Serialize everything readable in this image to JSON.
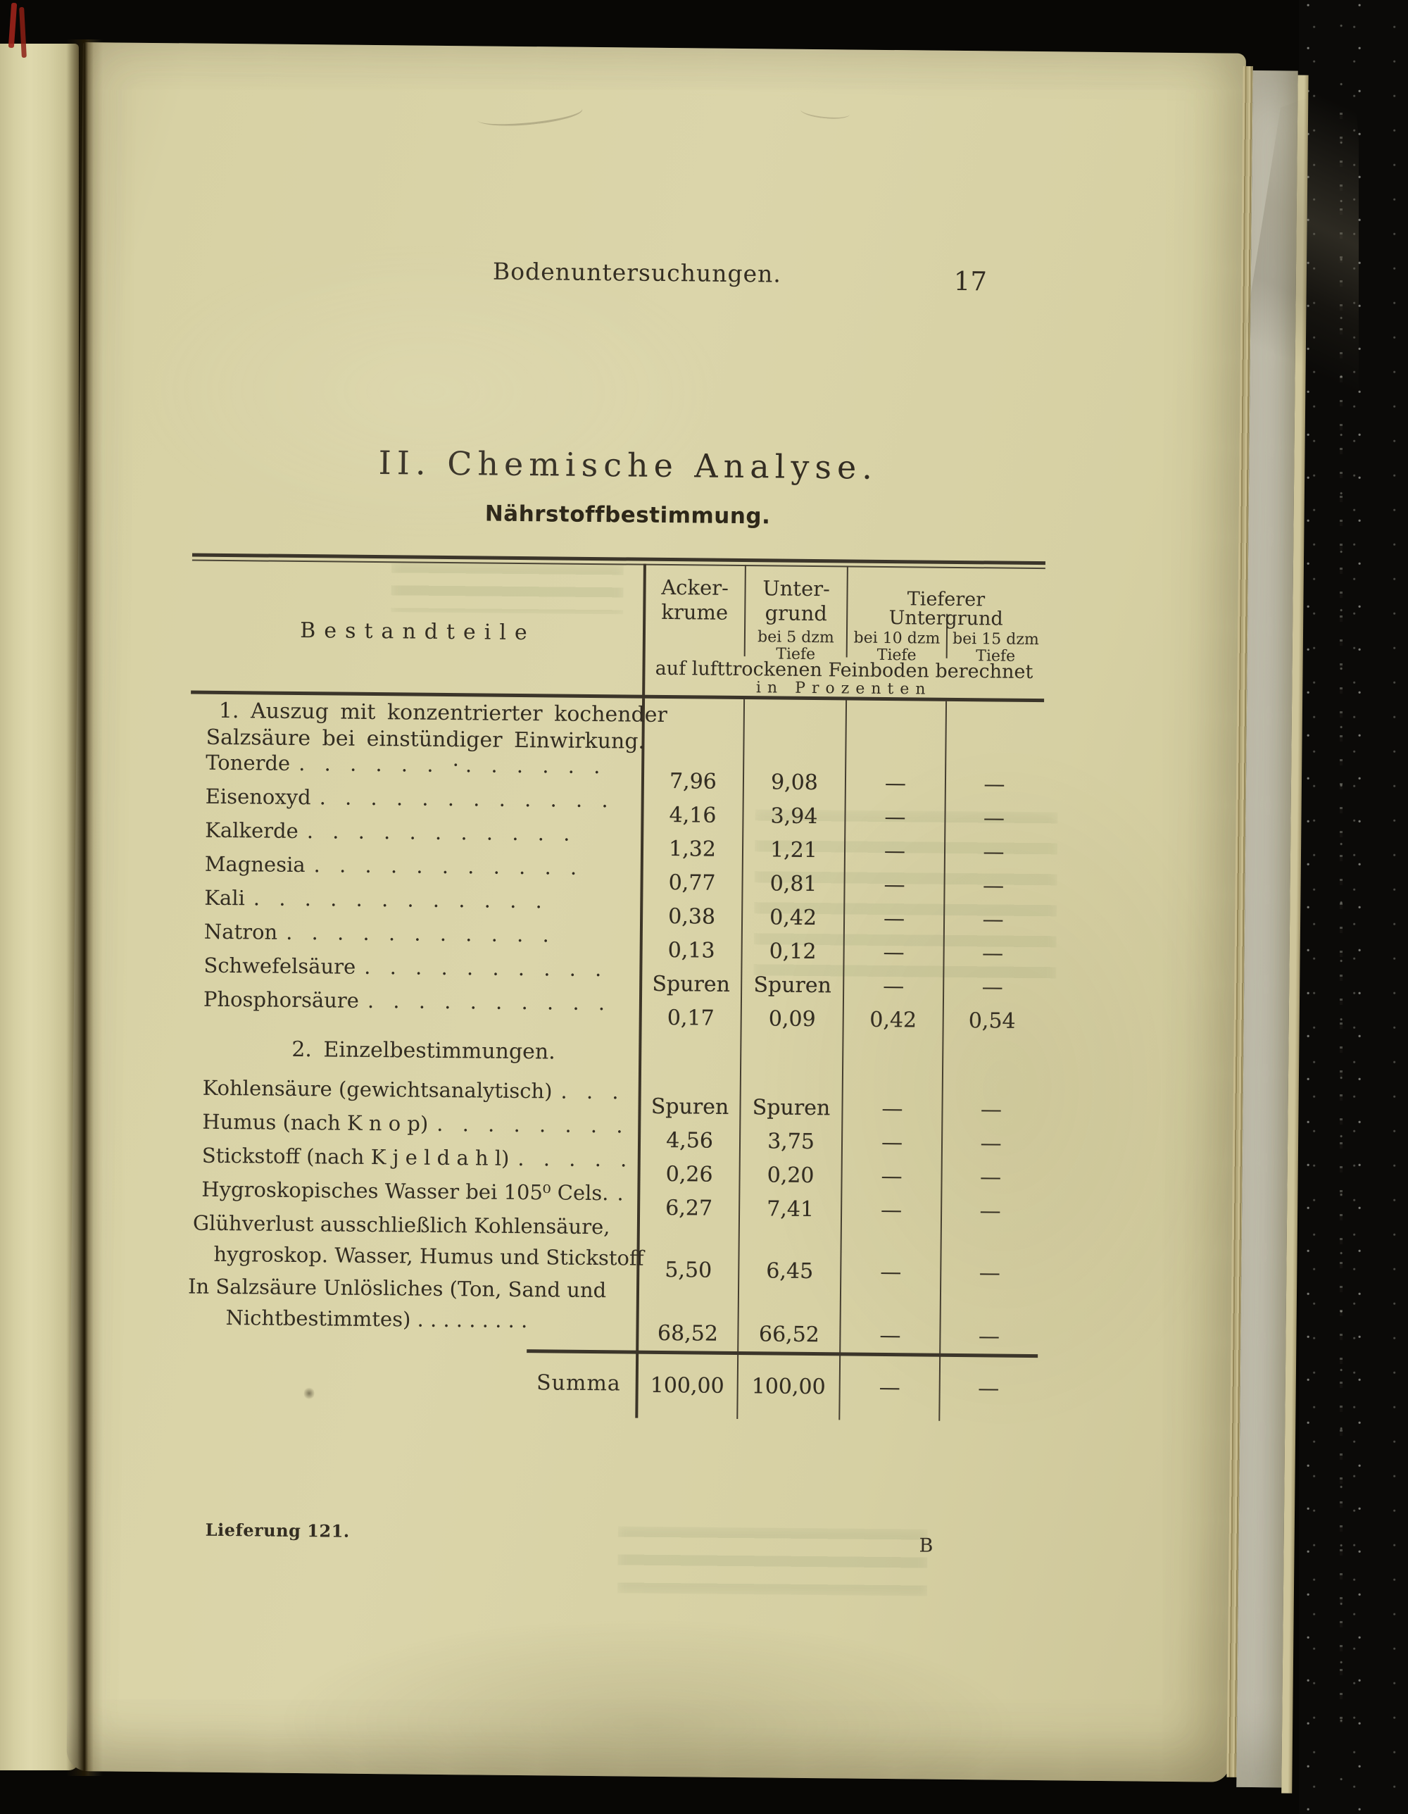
{
  "page": {
    "running_header": "Bodenuntersuchungen.",
    "page_number": "17",
    "section_title": "II. Chemische Analyse.",
    "subsection_title": "Nährstoffbestimmung.",
    "footer_left": "Lieferung 121.",
    "footer_right": "B"
  },
  "table": {
    "col_left_header": "Bestandteile",
    "columns": {
      "acker_line1": "Acker-",
      "acker_line2": "krume",
      "unter_line1": "Unter-",
      "unter_line2": "grund",
      "unter_sub1": "bei 5 dzm",
      "unter_sub2": "Tiefe",
      "group_header": "Tieferer Untergrund",
      "sub10_line1": "bei 10 dzm",
      "sub10_line2": "Tiefe",
      "sub15_line1": "bei 15 dzm",
      "sub15_line2": "Tiefe"
    },
    "note_line1": "auf lufttrockenen Feinboden berechnet",
    "note_line2": "in Prozenten",
    "sections": [
      {
        "heading_lines": [
          "1. Auszug mit konzentrierter kochender",
          "Salzsäure bei einstündiger Einwirkung."
        ],
        "rows": [
          {
            "label": "Tonerde",
            "dots": ". . . . . . ·. . . . . .",
            "values": [
              "7,96",
              "9,08",
              "—",
              "—"
            ]
          },
          {
            "label": "Eisenoxyd",
            "dots": ". . . . . . . . . . . .",
            "values": [
              "4,16",
              "3,94",
              "—",
              "—"
            ]
          },
          {
            "label": "Kalkerde",
            "dots": ". . . . . . . . . . .",
            "values": [
              "1,32",
              "1,21",
              "—",
              "—"
            ]
          },
          {
            "label": "Magnesia",
            "dots": ". . . . . . . . . . .",
            "values": [
              "0,77",
              "0,81",
              "—",
              "—"
            ]
          },
          {
            "label": "Kali",
            "dots": ". . . . . . . . . . . .",
            "values": [
              "0,38",
              "0,42",
              "—",
              "—"
            ]
          },
          {
            "label": "Natron",
            "dots": ". . . . . . . . . . .",
            "values": [
              "0,13",
              "0,12",
              "—",
              "—"
            ]
          },
          {
            "label": "Schwefelsäure",
            "dots": ". . . . . . . . . .",
            "values": [
              "Spuren",
              "Spuren",
              "—",
              "—"
            ]
          },
          {
            "label": "Phosphorsäure",
            "dots": ". . . . . . . . . .",
            "values": [
              "0,17",
              "0,09",
              "0,42",
              "0,54"
            ]
          }
        ]
      },
      {
        "heading_lines": [
          "2. Einzelbestimmungen."
        ],
        "rows": [
          {
            "label": "Kohlensäure (gewichtsanalytisch)",
            "dots": ". . .",
            "values": [
              "Spuren",
              "Spuren",
              "—",
              "—"
            ]
          },
          {
            "label": "Humus (nach K n o p)",
            "dots": ". . . . . . . .",
            "values": [
              "4,56",
              "3,75",
              "—",
              "—"
            ]
          },
          {
            "label": "Stickstoff (nach K j e l d a h l)",
            "dots": ". . . . .",
            "values": [
              "0,26",
              "0,20",
              "—",
              "—"
            ]
          },
          {
            "label": "Hygroskopisches Wasser bei 105⁰ Cels.",
            "dots": ".",
            "values": [
              "6,27",
              "7,41",
              "—",
              "—"
            ]
          },
          {
            "label_lines": [
              "Glühverlust ausschließlich Kohlensäure,",
              "hygroskop. Wasser, Humus und Stickstoff"
            ],
            "values": [
              "5,50",
              "6,45",
              "—",
              "—"
            ]
          },
          {
            "label_lines": [
              "In Salzsäure Unlösliches (Ton, Sand und",
              "Nichtbestimmtes) . . . . . . . . ."
            ],
            "values": [
              "68,52",
              "66,52",
              "—",
              "—"
            ]
          }
        ]
      }
    ],
    "summa": {
      "label": "Summa",
      "values": [
        "100,00",
        "100,00",
        "—",
        "—"
      ]
    }
  },
  "decor": {
    "page_color": "#d8d2a6",
    "ink_color": "#332d22",
    "cover_color": "#0b0a08",
    "corner_mark_color": "#9c241b"
  }
}
